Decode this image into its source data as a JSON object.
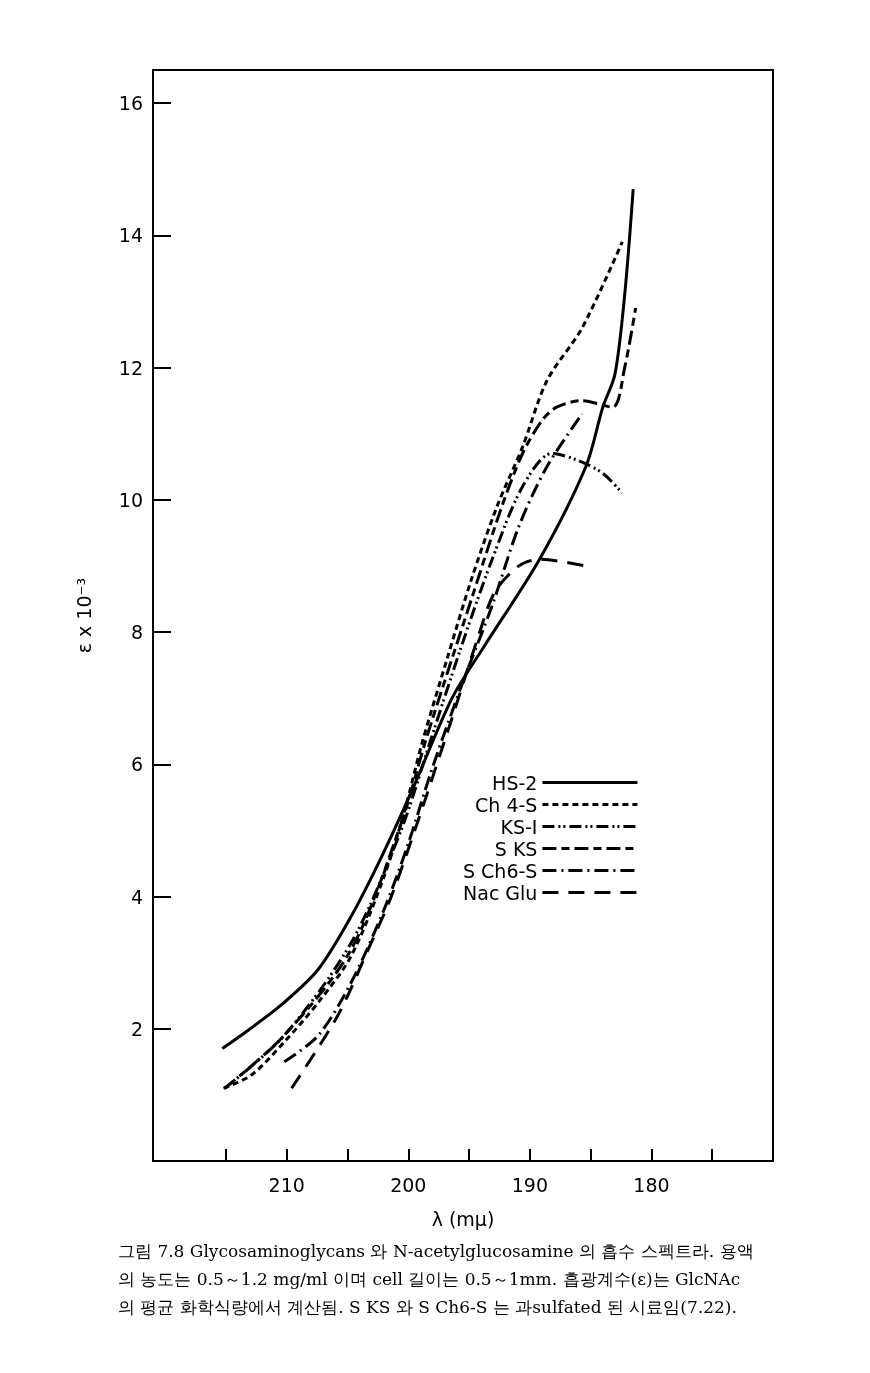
{
  "chart_data": {
    "type": "line",
    "xlabel": "λ (mμ)",
    "ylabel": "ε x 10⁻³",
    "xlim": [
      221,
      170
    ],
    "ylim": [
      0,
      16.5
    ],
    "xticks": [
      {
        "value": 215,
        "label": null
      },
      210,
      {
        "value": 205,
        "label": null
      },
      200,
      {
        "value": 195,
        "label": null
      },
      190,
      {
        "value": 185,
        "label": null
      },
      180,
      {
        "value": 175,
        "label": null
      }
    ],
    "yticks": [
      2,
      4,
      6,
      8,
      10,
      12,
      14,
      16
    ],
    "grid": false,
    "legend": "right",
    "marker": "none",
    "series": [
      {
        "name": "HS-2",
        "color": "#000000",
        "line_style": "solid",
        "x": [
          215.3,
          213.0,
          210.2,
          207.4,
          204.7,
          202.2,
          199.7,
          196.4,
          193.7,
          189.2,
          185.4,
          184.0,
          183.0,
          182.2,
          181.5
        ],
        "values": [
          1.7,
          2.0,
          2.4,
          2.9,
          3.7,
          4.6,
          5.6,
          7.0,
          7.8,
          9.1,
          10.5,
          11.4,
          11.9,
          13.1,
          14.7
        ]
      },
      {
        "name": "Ch 4-S",
        "color": "#000000",
        "line_style": "dashed",
        "x": [
          215.2,
          212.9,
          210.2,
          207.4,
          204.7,
          202.0,
          200.3,
          198.9,
          196.8,
          194.8,
          192.7,
          190.6,
          188.6,
          185.7,
          182.4
        ],
        "values": [
          1.1,
          1.3,
          1.8,
          2.4,
          3.1,
          4.3,
          5.3,
          6.3,
          7.6,
          8.8,
          9.9,
          10.8,
          11.8,
          12.6,
          13.9
        ]
      },
      {
        "name": "KS-I",
        "color": "#000000",
        "line_style": "dashdotdot",
        "x": [
          215.1,
          210.2,
          204.7,
          200.6,
          198.1,
          195.6,
          193.1,
          190.6,
          188.2,
          186.1,
          184.0,
          182.4
        ],
        "values": [
          1.1,
          1.9,
          3.3,
          5.0,
          6.4,
          7.8,
          9.1,
          10.2,
          10.7,
          10.6,
          10.4,
          10.1
        ]
      },
      {
        "name": "S KS",
        "color": "#000000",
        "line_style": "longdash",
        "x": [
          215.1,
          210.2,
          204.7,
          200.6,
          198.5,
          194.8,
          192.3,
          190.6,
          189.0,
          187.8,
          185.7,
          183.2,
          182.2,
          181.3
        ],
        "values": [
          1.1,
          1.9,
          3.2,
          5.1,
          6.4,
          8.5,
          9.9,
          10.7,
          11.2,
          11.4,
          11.5,
          11.4,
          12.0,
          12.9
        ]
      },
      {
        "name": "S Ch6-S",
        "color": "#000000",
        "line_style": "dashdot",
        "x": [
          210.2,
          207.4,
          204.7,
          202.0,
          200.0,
          198.1,
          195.6,
          193.1,
          190.9,
          188.6,
          185.7
        ],
        "values": [
          1.5,
          1.9,
          2.7,
          3.8,
          4.8,
          5.9,
          7.2,
          8.4,
          9.6,
          10.5,
          11.3
        ]
      },
      {
        "name": "Nac Glu",
        "color": "#000000",
        "line_style": "gapdash",
        "x": [
          209.6,
          205.8,
          203.3,
          201.4,
          199.1,
          196.4,
          194.3,
          192.9,
          190.9,
          189.2,
          185.4
        ],
        "values": [
          1.1,
          2.2,
          3.2,
          4.0,
          5.2,
          6.7,
          7.9,
          8.6,
          9.0,
          9.1,
          9.0
        ]
      }
    ],
    "annotations": [
      "그림 7.8 Glycosaminoglycans 와 N-acetylglucosamine 의 흡수 스펙트라. 용액의 농도는 0.5～1.2 mg/ml 이며 cell 길이는 0.5～1mm. 흡광계수(ε)는 GlcNAc 의 평균 화학식량에서 계산됨. S KS 와 S Ch6-S 는 과sulfated 된 시료임(7.22)."
    ]
  }
}
